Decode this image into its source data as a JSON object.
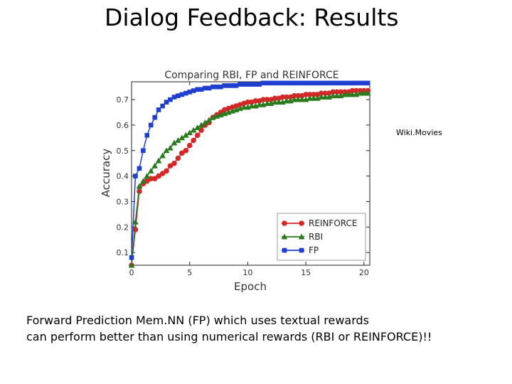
{
  "slide": {
    "title": "Dialog Feedback: Results",
    "side_label": "Wiki.Movies",
    "caption_line1": "Forward Prediction Mem.NN (FP) which uses textual rewards",
    "caption_line2": "can perform better than using numerical rewards (RBI or REINFORCE)!!"
  },
  "chart_data": {
    "type": "line",
    "title": "Comparing RBI, FP and REINFORCE",
    "xlabel": "Epoch",
    "ylabel": "Accuracy",
    "xlim": [
      0,
      20.5
    ],
    "ylim": [
      0.05,
      0.77
    ],
    "xticks": [
      0,
      5,
      10,
      15,
      20
    ],
    "xtick_labels": [
      "0",
      "5",
      "10",
      "15",
      "20"
    ],
    "yticks": [
      0.1,
      0.2,
      0.3,
      0.4,
      0.5,
      0.6,
      0.7
    ],
    "ytick_labels": [
      "0.1",
      "0.2",
      "0.3",
      "0.4",
      "0.5",
      "0.6",
      "0.7"
    ],
    "grid": false,
    "legend_position": "lower-right",
    "series": [
      {
        "name": "REINFORCE",
        "color": "#d62728",
        "marker": "circle",
        "x": [
          0,
          0.33,
          0.67,
          1,
          1.33,
          1.67,
          2,
          2.33,
          2.67,
          3,
          3.33,
          3.67,
          4,
          4.33,
          4.67,
          5,
          5.33,
          5.67,
          6,
          6.33,
          6.67,
          7,
          7.33,
          7.67,
          8,
          8.33,
          8.67,
          9,
          9.33,
          9.67,
          10,
          10.33,
          10.67,
          11,
          11.33,
          11.67,
          12,
          12.33,
          12.67,
          13,
          13.33,
          13.67,
          14,
          14.33,
          14.67,
          15,
          15.33,
          15.67,
          16,
          16.33,
          16.67,
          17,
          17.33,
          17.67,
          18,
          18.33,
          18.67,
          19,
          19.33,
          19.67,
          20,
          20.33
        ],
        "y": [
          0.05,
          0.19,
          0.34,
          0.37,
          0.38,
          0.39,
          0.39,
          0.4,
          0.41,
          0.42,
          0.44,
          0.45,
          0.47,
          0.49,
          0.5,
          0.52,
          0.54,
          0.56,
          0.58,
          0.6,
          0.61,
          0.63,
          0.64,
          0.65,
          0.66,
          0.665,
          0.67,
          0.675,
          0.68,
          0.685,
          0.69,
          0.69,
          0.695,
          0.695,
          0.7,
          0.7,
          0.7,
          0.705,
          0.705,
          0.71,
          0.71,
          0.71,
          0.715,
          0.715,
          0.715,
          0.72,
          0.72,
          0.72,
          0.72,
          0.725,
          0.725,
          0.725,
          0.73,
          0.73,
          0.73,
          0.73,
          0.73,
          0.735,
          0.735,
          0.735,
          0.735,
          0.735
        ]
      },
      {
        "name": "RBI",
        "color": "#2a7a1e",
        "marker": "triangle",
        "x": [
          0,
          0.33,
          0.67,
          1,
          1.33,
          1.67,
          2,
          2.33,
          2.67,
          3,
          3.33,
          3.67,
          4,
          4.33,
          4.67,
          5,
          5.33,
          5.67,
          6,
          6.33,
          6.67,
          7,
          7.33,
          7.67,
          8,
          8.33,
          8.67,
          9,
          9.33,
          9.67,
          10,
          10.33,
          10.67,
          11,
          11.33,
          11.67,
          12,
          12.33,
          12.67,
          13,
          13.33,
          13.67,
          14,
          14.33,
          14.67,
          15,
          15.33,
          15.67,
          16,
          16.33,
          16.67,
          17,
          17.33,
          17.67,
          18,
          18.33,
          18.67,
          19,
          19.33,
          19.67,
          20,
          20.33
        ],
        "y": [
          0.05,
          0.22,
          0.36,
          0.38,
          0.4,
          0.42,
          0.44,
          0.46,
          0.48,
          0.5,
          0.51,
          0.53,
          0.54,
          0.55,
          0.56,
          0.57,
          0.58,
          0.59,
          0.6,
          0.61,
          0.62,
          0.63,
          0.635,
          0.64,
          0.645,
          0.65,
          0.655,
          0.66,
          0.665,
          0.67,
          0.67,
          0.675,
          0.675,
          0.68,
          0.68,
          0.685,
          0.685,
          0.69,
          0.69,
          0.69,
          0.695,
          0.695,
          0.7,
          0.7,
          0.7,
          0.7,
          0.705,
          0.705,
          0.705,
          0.71,
          0.71,
          0.71,
          0.715,
          0.715,
          0.715,
          0.72,
          0.72,
          0.72,
          0.72,
          0.725,
          0.725,
          0.725
        ]
      },
      {
        "name": "FP",
        "color": "#1f3fcf",
        "marker": "square",
        "x": [
          0,
          0.33,
          0.67,
          1,
          1.33,
          1.67,
          2,
          2.33,
          2.67,
          3,
          3.33,
          3.67,
          4,
          4.33,
          4.67,
          5,
          5.33,
          5.67,
          6,
          6.33,
          6.67,
          7,
          7.33,
          7.67,
          8,
          8.33,
          8.67,
          9,
          9.33,
          9.67,
          10,
          10.33,
          10.67,
          11,
          11.33,
          11.67,
          12,
          12.33,
          12.67,
          13,
          13.33,
          13.67,
          14,
          14.33,
          14.67,
          15,
          15.33,
          15.67,
          16,
          16.33,
          16.67,
          17,
          17.33,
          17.67,
          18,
          18.33,
          18.67,
          19,
          19.33,
          19.67,
          20,
          20.33
        ],
        "y": [
          0.08,
          0.4,
          0.43,
          0.5,
          0.56,
          0.6,
          0.63,
          0.66,
          0.675,
          0.69,
          0.7,
          0.71,
          0.715,
          0.72,
          0.725,
          0.73,
          0.735,
          0.74,
          0.74,
          0.745,
          0.745,
          0.75,
          0.75,
          0.75,
          0.755,
          0.755,
          0.755,
          0.755,
          0.76,
          0.76,
          0.76,
          0.76,
          0.76,
          0.76,
          0.765,
          0.765,
          0.765,
          0.765,
          0.765,
          0.765,
          0.765,
          0.765,
          0.765,
          0.765,
          0.765,
          0.765,
          0.765,
          0.765,
          0.765,
          0.765,
          0.765,
          0.765,
          0.765,
          0.765,
          0.765,
          0.765,
          0.765,
          0.765,
          0.765,
          0.765,
          0.765,
          0.765
        ]
      }
    ]
  }
}
